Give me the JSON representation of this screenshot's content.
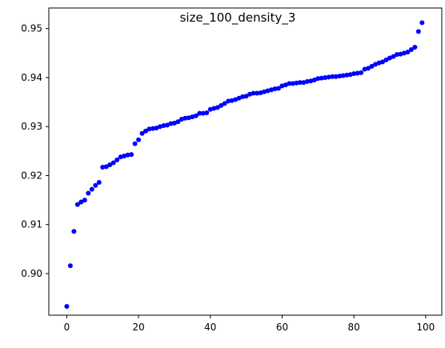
{
  "chart_data": {
    "type": "scatter",
    "title": "size_100_density_3",
    "xlabel": "",
    "ylabel": "",
    "xlim": [
      -5,
      104.5
    ],
    "ylim": [
      0.8915,
      0.9542
    ],
    "x_ticks": [
      0,
      20,
      40,
      60,
      80,
      100
    ],
    "y_ticks": [
      0.9,
      0.91,
      0.92,
      0.93,
      0.94,
      0.95
    ],
    "x_tick_labels": [
      "0",
      "20",
      "40",
      "60",
      "80",
      "100"
    ],
    "y_tick_labels": [
      "0.90",
      "0.91",
      "0.92",
      "0.93",
      "0.94",
      "0.95"
    ],
    "grid": false,
    "marker_color": "#0000ff",
    "series": [
      {
        "x": [
          0,
          1,
          2,
          3,
          4,
          5,
          6,
          7,
          8,
          9,
          10,
          11,
          12,
          13,
          14,
          15,
          16,
          17,
          18,
          19,
          20,
          21,
          22,
          23,
          24,
          25,
          26,
          27,
          28,
          29,
          30,
          31,
          32,
          33,
          34,
          35,
          36,
          37,
          38,
          39,
          40,
          41,
          42,
          43,
          44,
          45,
          46,
          47,
          48,
          49,
          50,
          51,
          52,
          53,
          54,
          55,
          56,
          57,
          58,
          59,
          60,
          61,
          62,
          63,
          64,
          65,
          66,
          67,
          68,
          69,
          70,
          71,
          72,
          73,
          74,
          75,
          76,
          77,
          78,
          79,
          80,
          81,
          82,
          83,
          84,
          85,
          86,
          87,
          88,
          89,
          90,
          91,
          92,
          93,
          94,
          95,
          96,
          97,
          98,
          99
        ],
        "y": [
          0.8933,
          0.9016,
          0.9086,
          0.9141,
          0.9146,
          0.915,
          0.9164,
          0.9172,
          0.918,
          0.9186,
          0.9217,
          0.9218,
          0.9222,
          0.9226,
          0.9232,
          0.9238,
          0.924,
          0.9242,
          0.9243,
          0.9265,
          0.9273,
          0.9286,
          0.9291,
          0.9295,
          0.9296,
          0.9297,
          0.93,
          0.9302,
          0.9303,
          0.9306,
          0.9307,
          0.931,
          0.9315,
          0.9317,
          0.9318,
          0.932,
          0.9322,
          0.9327,
          0.9327,
          0.9328,
          0.9335,
          0.9337,
          0.9339,
          0.9343,
          0.9347,
          0.9352,
          0.9353,
          0.9355,
          0.9358,
          0.9361,
          0.9362,
          0.9366,
          0.9368,
          0.9368,
          0.9369,
          0.9371,
          0.9373,
          0.9375,
          0.9377,
          0.9378,
          0.9383,
          0.9385,
          0.9388,
          0.9388,
          0.9389,
          0.939,
          0.939,
          0.9392,
          0.9393,
          0.9395,
          0.9398,
          0.9399,
          0.94,
          0.9401,
          0.9402,
          0.9402,
          0.9403,
          0.9404,
          0.9405,
          0.9406,
          0.9408,
          0.9409,
          0.941,
          0.9417,
          0.9419,
          0.9423,
          0.9427,
          0.943,
          0.9432,
          0.9436,
          0.944,
          0.9443,
          0.9447,
          0.9448,
          0.945,
          0.9452,
          0.9457,
          0.9462,
          0.9494,
          0.9512
        ]
      }
    ]
  }
}
